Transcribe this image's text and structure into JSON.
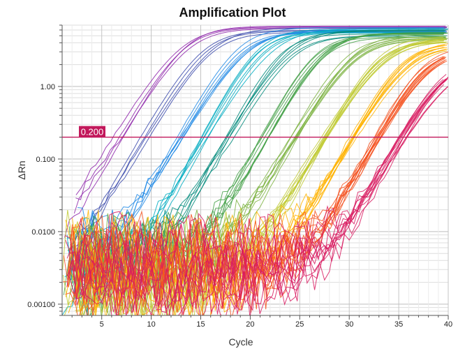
{
  "chart_data": {
    "type": "line",
    "title": "Amplification Plot",
    "xlabel": "Cycle",
    "ylabel": "ΔRn",
    "xlim": [
      1,
      40
    ],
    "ylim": [
      0.0007,
      7
    ],
    "yscale": "log",
    "grid": true,
    "legend": "none",
    "x_ticks": [
      5,
      10,
      15,
      20,
      25,
      30,
      35,
      40
    ],
    "x_tick_labels": [
      "5",
      "10",
      "15",
      "20",
      "25",
      "30",
      "35",
      "40"
    ],
    "y_ticks": [
      0.001,
      0.01,
      0.1,
      1
    ],
    "y_tick_labels": [
      "0.00100",
      "0.0100",
      "0.100",
      "1.00"
    ],
    "threshold": {
      "value": 0.2,
      "label": "0.200",
      "color": "#c2185b"
    },
    "series": [
      {
        "color": "#8e24aa",
        "ct": 7.0,
        "plateau": 6.6,
        "replicates": 4
      },
      {
        "color": "#3949ab",
        "ct": 9.5,
        "plateau": 6.4,
        "replicates": 4
      },
      {
        "color": "#1e88e5",
        "ct": 13.0,
        "plateau": 6.2,
        "replicates": 6
      },
      {
        "color": "#00acc1",
        "ct": 15.5,
        "plateau": 6.0,
        "replicates": 6
      },
      {
        "color": "#00897b",
        "ct": 18.0,
        "plateau": 5.8,
        "replicates": 6
      },
      {
        "color": "#43a047",
        "ct": 21.5,
        "plateau": 5.5,
        "replicates": 8
      },
      {
        "color": "#7cb342",
        "ct": 24.5,
        "plateau": 5.0,
        "replicates": 8
      },
      {
        "color": "#c0ca33",
        "ct": 27.5,
        "plateau": 4.8,
        "replicates": 10
      },
      {
        "color": "#ffb300",
        "ct": 30.5,
        "plateau": 4.2,
        "replicates": 10
      },
      {
        "color": "#f4511e",
        "ct": 33.0,
        "plateau": 3.5,
        "replicates": 12
      },
      {
        "color": "#d81b60",
        "ct": 35.5,
        "plateau": 2.5,
        "replicates": 12
      }
    ]
  }
}
